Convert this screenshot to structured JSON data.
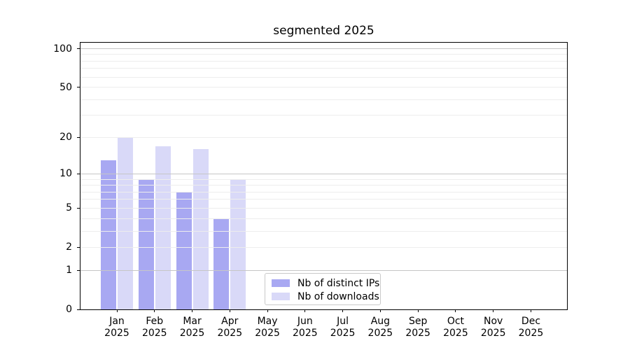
{
  "chart_data": {
    "type": "bar",
    "title": "segmented 2025",
    "categories": [
      "Jan 2025",
      "Feb 2025",
      "Mar 2025",
      "Apr 2025",
      "May 2025",
      "Jun 2025",
      "Jul 2025",
      "Aug 2025",
      "Sep 2025",
      "Oct 2025",
      "Nov 2025",
      "Dec 2025"
    ],
    "series": [
      {
        "name": "Nb of distinct IPs",
        "color": "#a8a8f2",
        "values": [
          13,
          9,
          7,
          4,
          0,
          0,
          0,
          0,
          0,
          0,
          0,
          0
        ]
      },
      {
        "name": "Nb of downloads",
        "color": "#d9d9f8",
        "values": [
          20,
          17,
          16,
          9,
          0,
          0,
          0,
          0,
          0,
          0,
          0,
          0
        ]
      }
    ],
    "y_axis": {
      "scale": "log10(1+v)",
      "ticks": [
        0,
        1,
        2,
        5,
        10,
        20,
        50,
        100
      ],
      "major_gridlines": [
        1,
        10,
        100
      ],
      "minor_gridlines": [
        2,
        3,
        4,
        5,
        6,
        7,
        8,
        9,
        20,
        30,
        40,
        50,
        60,
        70,
        80,
        90
      ],
      "range_top": 100
    },
    "legend_position": "lower center",
    "grid": true,
    "colors": {
      "major_grid": "#c6c6c6",
      "minor_grid": "#ededed",
      "axis": "#000000",
      "text": "#000000"
    }
  }
}
